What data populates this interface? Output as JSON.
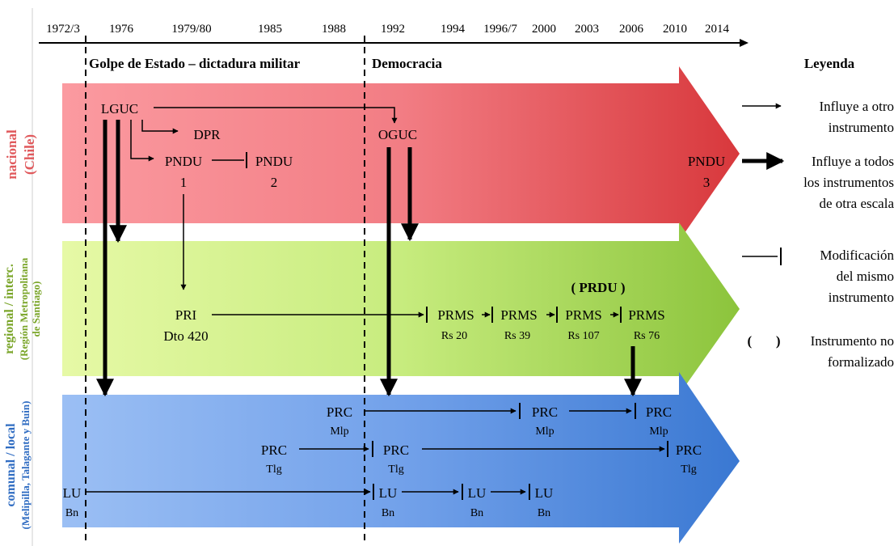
{
  "timeline": {
    "years": [
      "1972/3",
      "1976",
      "1979/80",
      "1985",
      "1988",
      "1992",
      "1994",
      "1996/7",
      "2000",
      "2003",
      "2006",
      "2010",
      "2014"
    ]
  },
  "periods": {
    "dictatorship": "Golpe de Estado – dictadura militar",
    "democracy": "Democracia"
  },
  "bands": {
    "national": {
      "label_line1": "nacional",
      "label_line2": "(Chile)",
      "color": "#e84b4b"
    },
    "regional": {
      "label_line1": "regional / interc.",
      "label_line2": "(Región Metropolitana",
      "label_line3": "de Santiago)",
      "color": "#9ccc3c"
    },
    "local": {
      "label_line1": "comunal / local",
      "label_line2": "(Melipilla, Talagante y Buin)",
      "color": "#3b7fd4"
    }
  },
  "nodes": {
    "lguc": "LGUC",
    "dpr": "DPR",
    "pndu1_top": "PNDU",
    "pndu1_sub": "1",
    "pndu2_top": "PNDU",
    "pndu2_sub": "2",
    "oguc": "OGUC",
    "pndu3_top": "PNDU",
    "pndu3_sub": "3",
    "pri_top": "PRI",
    "pri_sub": "Dto 420",
    "prdu": "( PRDU )",
    "prms1_top": "PRMS",
    "prms1_sub": "Rs 20",
    "prms2_top": "PRMS",
    "prms2_sub": "Rs 39",
    "prms3_top": "PRMS",
    "prms3_sub": "Rs 107",
    "prms4_top": "PRMS",
    "prms4_sub": "Rs 76",
    "prc_mlp1_top": "PRC",
    "prc_mlp1_sub": "Mlp",
    "prc_mlp2_top": "PRC",
    "prc_mlp2_sub": "Mlp",
    "prc_mlp3_top": "PRC",
    "prc_mlp3_sub": "Mlp",
    "prc_tlg1_top": "PRC",
    "prc_tlg1_sub": "Tlg",
    "prc_tlg2_top": "PRC",
    "prc_tlg2_sub": "Tlg",
    "prc_tlg3_top": "PRC",
    "prc_tlg3_sub": "Tlg",
    "lu1_top": "LU",
    "lu1_sub": "Bn",
    "lu2_top": "LU",
    "lu2_sub": "Bn",
    "lu3_top": "LU",
    "lu3_sub": "Bn",
    "lu4_top": "LU",
    "lu4_sub": "Bn"
  },
  "legend": {
    "title": "Leyenda",
    "item1_line1": "Influye a otro",
    "item1_line2": "instrumento",
    "item2_line1": "Influye a todos",
    "item2_line2": "los instrumentos",
    "item2_line3": "de otra escala",
    "item3_line1": "Modificación",
    "item3_line2": "del mismo",
    "item3_line3": "instrumento",
    "item4_bracket": "(       )",
    "item4_line1": "Instrumento no",
    "item4_line2": "formalizado"
  }
}
